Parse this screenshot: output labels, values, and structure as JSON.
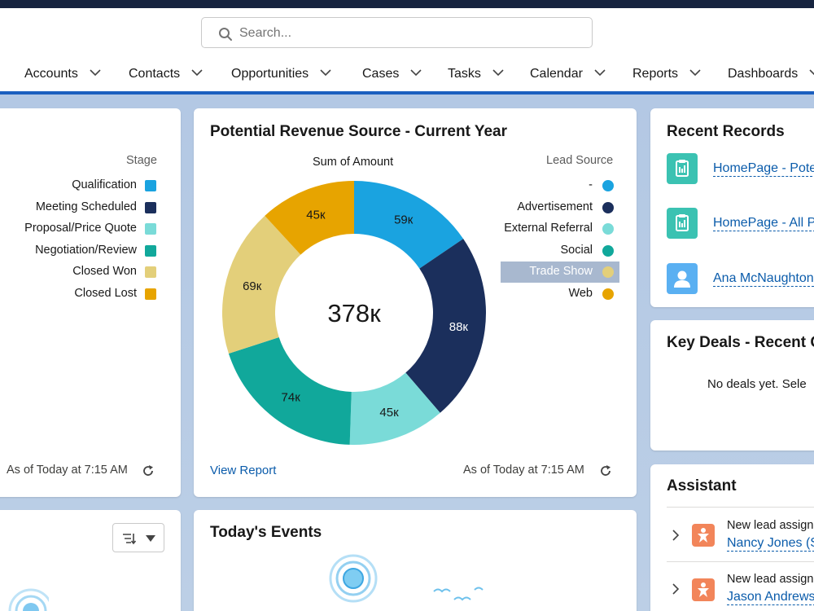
{
  "search": {
    "placeholder": "Search..."
  },
  "nav": {
    "items": [
      {
        "label": "Accounts"
      },
      {
        "label": "Contacts"
      },
      {
        "label": "Opportunities"
      },
      {
        "label": "Cases"
      },
      {
        "label": "Tasks"
      },
      {
        "label": "Calendar"
      },
      {
        "label": "Reports"
      },
      {
        "label": "Dashboards"
      }
    ]
  },
  "stage_card": {
    "legend_title": "Stage",
    "legend": [
      {
        "label": "Qualification",
        "color": "#1aa3e0"
      },
      {
        "label": "Meeting Scheduled",
        "color": "#1b2f5c"
      },
      {
        "label": "Proposal/Price Quote",
        "color": "#7adbd8"
      },
      {
        "label": "Negotiation/Review",
        "color": "#11a89b"
      },
      {
        "label": "Closed Won",
        "color": "#e3cf7a"
      },
      {
        "label": "Closed Lost",
        "color": "#e7a400"
      }
    ],
    "timestamp": "As of Today at 7:15 AM"
  },
  "revenue_card": {
    "title": "Potential Revenue Source - Current Year",
    "view_report": "View Report",
    "timestamp": "As of Today at 7:15 AM",
    "legend_title": "Lead Source",
    "legend": [
      {
        "label": "-",
        "color": "#1aa3e0"
      },
      {
        "label": "Advertisement",
        "color": "#1b2f5c"
      },
      {
        "label": "External Referral",
        "color": "#7adbd8"
      },
      {
        "label": "Social",
        "color": "#11a89b"
      },
      {
        "label": "Trade Show",
        "color": "#e3cf7a"
      },
      {
        "label": "Web",
        "color": "#e7a400"
      }
    ],
    "highlighted_legend": "Trade Show"
  },
  "chart_data": {
    "type": "pie",
    "title": "Sum of Amount",
    "center_label": "378к",
    "categories": [
      "-",
      "Advertisement",
      "External Referral",
      "Social",
      "Trade Show",
      "Web"
    ],
    "values": [
      59,
      88,
      45,
      74,
      69,
      45
    ],
    "labels": [
      "59к",
      "88к",
      "45к",
      "74к",
      "69к",
      "45к"
    ],
    "colors": [
      "#1aa3e0",
      "#1b2f5c",
      "#7adbd8",
      "#11a89b",
      "#e3cf7a",
      "#e7a400"
    ],
    "label_colors": [
      "#181818",
      "#ffffff",
      "#181818",
      "#181818",
      "#181818",
      "#181818"
    ]
  },
  "recent_records": {
    "title": "Recent Records",
    "items": [
      {
        "label": "HomePage - Pote",
        "icon": "clipboard-icon"
      },
      {
        "label": "HomePage - All P",
        "icon": "clipboard-icon"
      },
      {
        "label": "Ana McNaughton",
        "icon": "contact-icon"
      }
    ]
  },
  "key_deals": {
    "title": "Key Deals - Recent C",
    "empty_text": "No deals yet. Sele"
  },
  "assistant": {
    "title": "Assistant",
    "items": [
      {
        "text": "New lead assign",
        "link": "Nancy Jones (S"
      },
      {
        "text": "New lead assign",
        "link": "Jason Andrews"
      }
    ]
  },
  "events": {
    "title": "Today's Events"
  }
}
